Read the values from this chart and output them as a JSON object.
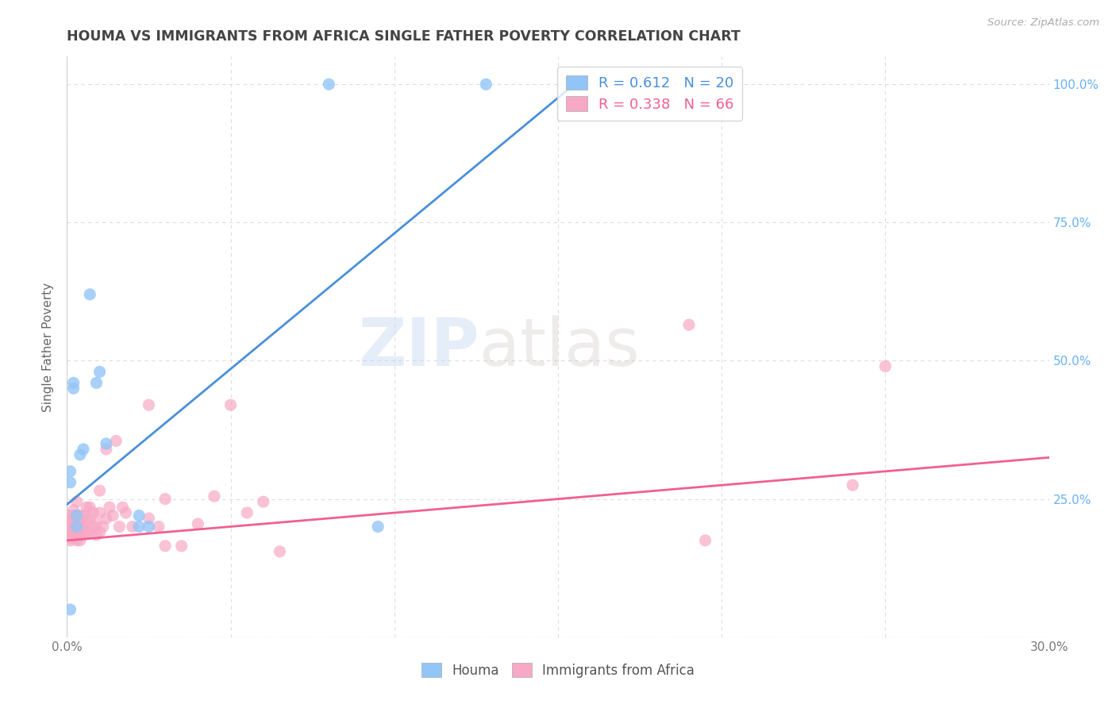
{
  "title": "HOUMA VS IMMIGRANTS FROM AFRICA SINGLE FATHER POVERTY CORRELATION CHART",
  "source": "Source: ZipAtlas.com",
  "ylabel": "Single Father Poverty",
  "x_min": 0.0,
  "x_max": 0.3,
  "y_min": 0.0,
  "y_max": 1.05,
  "x_ticks": [
    0.0,
    0.05,
    0.1,
    0.15,
    0.2,
    0.25,
    0.3
  ],
  "y_ticks": [
    0.0,
    0.25,
    0.5,
    0.75,
    1.0
  ],
  "legend_r1": "R = 0.612",
  "legend_n1": "N = 20",
  "legend_r2": "R = 0.338",
  "legend_n2": "N = 66",
  "blue_color": "#92c5f7",
  "pink_color": "#f7a8c4",
  "trendline_blue": "#4a90d9",
  "trendline_pink": "#f06090",
  "watermark_zip": "ZIP",
  "watermark_atlas": "atlas",
  "houma_scatter": [
    [
      0.001,
      0.3
    ],
    [
      0.001,
      0.28
    ],
    [
      0.002,
      0.46
    ],
    [
      0.002,
      0.45
    ],
    [
      0.003,
      0.2
    ],
    [
      0.003,
      0.22
    ],
    [
      0.004,
      0.33
    ],
    [
      0.005,
      0.34
    ],
    [
      0.007,
      0.62
    ],
    [
      0.009,
      0.46
    ],
    [
      0.01,
      0.48
    ],
    [
      0.012,
      0.35
    ],
    [
      0.022,
      0.2
    ],
    [
      0.022,
      0.22
    ],
    [
      0.025,
      0.2
    ],
    [
      0.08,
      1.0
    ],
    [
      0.128,
      1.0
    ],
    [
      0.155,
      1.0
    ],
    [
      0.001,
      0.05
    ],
    [
      0.095,
      0.2
    ]
  ],
  "africa_scatter": [
    [
      0.001,
      0.2
    ],
    [
      0.001,
      0.19
    ],
    [
      0.001,
      0.18
    ],
    [
      0.001,
      0.175
    ],
    [
      0.001,
      0.22
    ],
    [
      0.001,
      0.21
    ],
    [
      0.002,
      0.2
    ],
    [
      0.002,
      0.185
    ],
    [
      0.002,
      0.19
    ],
    [
      0.002,
      0.21
    ],
    [
      0.002,
      0.22
    ],
    [
      0.002,
      0.215
    ],
    [
      0.002,
      0.23
    ],
    [
      0.003,
      0.175
    ],
    [
      0.003,
      0.185
    ],
    [
      0.003,
      0.19
    ],
    [
      0.003,
      0.2
    ],
    [
      0.003,
      0.22
    ],
    [
      0.003,
      0.245
    ],
    [
      0.004,
      0.175
    ],
    [
      0.004,
      0.185
    ],
    [
      0.004,
      0.19
    ],
    [
      0.004,
      0.2
    ],
    [
      0.004,
      0.22
    ],
    [
      0.005,
      0.185
    ],
    [
      0.005,
      0.2
    ],
    [
      0.005,
      0.22
    ],
    [
      0.006,
      0.19
    ],
    [
      0.006,
      0.21
    ],
    [
      0.006,
      0.235
    ],
    [
      0.007,
      0.19
    ],
    [
      0.007,
      0.215
    ],
    [
      0.007,
      0.235
    ],
    [
      0.008,
      0.2
    ],
    [
      0.008,
      0.225
    ],
    [
      0.009,
      0.185
    ],
    [
      0.009,
      0.205
    ],
    [
      0.01,
      0.19
    ],
    [
      0.01,
      0.225
    ],
    [
      0.01,
      0.265
    ],
    [
      0.011,
      0.2
    ],
    [
      0.012,
      0.215
    ],
    [
      0.012,
      0.34
    ],
    [
      0.013,
      0.235
    ],
    [
      0.014,
      0.22
    ],
    [
      0.015,
      0.355
    ],
    [
      0.016,
      0.2
    ],
    [
      0.017,
      0.235
    ],
    [
      0.018,
      0.225
    ],
    [
      0.02,
      0.2
    ],
    [
      0.025,
      0.215
    ],
    [
      0.025,
      0.42
    ],
    [
      0.028,
      0.2
    ],
    [
      0.03,
      0.25
    ],
    [
      0.03,
      0.165
    ],
    [
      0.035,
      0.165
    ],
    [
      0.04,
      0.205
    ],
    [
      0.045,
      0.255
    ],
    [
      0.05,
      0.42
    ],
    [
      0.055,
      0.225
    ],
    [
      0.06,
      0.245
    ],
    [
      0.065,
      0.155
    ],
    [
      0.19,
      0.565
    ],
    [
      0.195,
      0.175
    ],
    [
      0.24,
      0.275
    ],
    [
      0.25,
      0.49
    ]
  ],
  "blue_trendline_x": [
    0.0,
    0.155
  ],
  "blue_trendline_y": [
    0.24,
    1.0
  ],
  "pink_trendline_x": [
    0.0,
    0.3
  ],
  "pink_trendline_y": [
    0.175,
    0.325
  ],
  "background_color": "#ffffff",
  "grid_color": "#dddddd",
  "title_color": "#444444",
  "right_axis_color": "#6ab0f5"
}
